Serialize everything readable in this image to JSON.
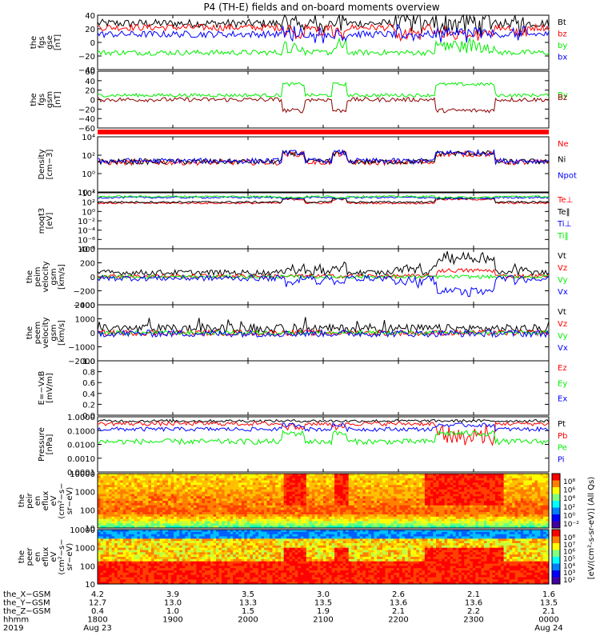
{
  "title": "P4 (TH-E) fields and on-board moments overview",
  "colors": {
    "black": "#000000",
    "red": "#ff0000",
    "green": "#00ee00",
    "blue": "#0000ff",
    "darkred": "#8b0000",
    "bar_red": "#ff0000"
  },
  "chart_data": [
    {
      "type": "line",
      "panel_id": "fgs_gse",
      "ylabel_lines": [
        "the",
        "fgs",
        "gse",
        "[nT]"
      ],
      "ylim": [
        -40,
        40
      ],
      "y_ticks": [
        "40",
        "20",
        "0",
        "−20",
        "−40"
      ],
      "series": [
        {
          "name": "Bt",
          "color": "black",
          "base": 28,
          "noise": 6,
          "pattern": "bt"
        },
        {
          "name": "bz",
          "color": "red",
          "base": 22,
          "noise": 5,
          "pattern": "bz"
        },
        {
          "name": "by",
          "color": "green",
          "base": -15,
          "noise": 4,
          "pattern": "by"
        },
        {
          "name": "bx",
          "color": "blue",
          "base": 12,
          "noise": 5,
          "pattern": "bx"
        }
      ]
    },
    {
      "type": "line",
      "panel_id": "fgs_gsm",
      "ylabel_lines": [
        "the",
        "fgs",
        "gsm",
        "[nT]"
      ],
      "ylim": [
        -70,
        60
      ],
      "y_ticks": [
        "60",
        "40",
        "20",
        "0",
        "−20",
        "−40",
        "−60"
      ],
      "series": [
        {
          "name": "By",
          "color": "green",
          "base": 5,
          "noise": 4,
          "pattern": "gsmby"
        },
        {
          "name": "Bz",
          "color": "darkred",
          "base": -5,
          "noise": 5,
          "pattern": "gsmbz"
        }
      ],
      "legend_overlap": true
    },
    {
      "type": "line",
      "panel_id": "density",
      "ylabel_lines": [
        "Density",
        "[cm−3]"
      ],
      "log": true,
      "ylim": [
        -4,
        4
      ],
      "y_ticks": [
        "10⁴",
        "10²",
        "10⁰",
        "10⁻²"
      ],
      "series": [
        {
          "name": "Ne",
          "color": "red",
          "base": 0.3,
          "noise": 0.4,
          "pattern": "dens"
        },
        {
          "name": "Ni",
          "color": "black",
          "base": 0.4,
          "noise": 0.4,
          "pattern": "dens"
        },
        {
          "name": "Npot",
          "color": "blue",
          "base": 0.5,
          "noise": 0.4,
          "pattern": "dens"
        }
      ]
    },
    {
      "type": "line",
      "panel_id": "temp",
      "ylabel_lines": [
        "moqt3",
        "[eV]"
      ],
      "log": true,
      "ylim": [
        -8,
        4
      ],
      "y_ticks": [
        "10⁴",
        "10²",
        "10⁰",
        "10⁻²",
        "10⁻⁴",
        "10⁻⁶",
        "10⁻⁸"
      ],
      "series": [
        {
          "name": "Te⊥",
          "color": "red",
          "base": 1.8,
          "noise": 0.2,
          "pattern": "temp"
        },
        {
          "name": "Te‖",
          "color": "black",
          "base": 2.0,
          "noise": 0.2,
          "pattern": "temp"
        },
        {
          "name": "Ti⊥",
          "color": "blue",
          "base": 3.0,
          "noise": 0.2,
          "pattern": "tempi"
        },
        {
          "name": "Ti‖",
          "color": "green",
          "base": 3.2,
          "noise": 0.2,
          "pattern": "tempi"
        }
      ]
    },
    {
      "type": "line",
      "panel_id": "peim_vel",
      "ylabel_lines": [
        "the",
        "peim",
        "velocity",
        "gsm",
        "[km/s]"
      ],
      "ylim": [
        -400,
        400
      ],
      "y_ticks": [
        "400",
        "200",
        "0",
        "−200",
        "−400"
      ],
      "series": [
        {
          "name": "Vt",
          "color": "black",
          "base": 60,
          "noise": 40,
          "pattern": "vt"
        },
        {
          "name": "Vz",
          "color": "red",
          "base": 10,
          "noise": 30,
          "pattern": "vz"
        },
        {
          "name": "Vy",
          "color": "green",
          "base": 0,
          "noise": 25,
          "pattern": "vy"
        },
        {
          "name": "Vx",
          "color": "blue",
          "base": -20,
          "noise": 40,
          "pattern": "vx"
        }
      ]
    },
    {
      "type": "line",
      "panel_id": "peem_vel",
      "ylabel_lines": [
        "the",
        "peem",
        "velocity",
        "gsm",
        "[km/s]"
      ],
      "ylim": [
        -2000,
        2000
      ],
      "y_ticks": [
        "2000",
        "1000",
        "0",
        "−1000",
        "−2000"
      ],
      "series": [
        {
          "name": "Vt",
          "color": "black",
          "base": 300,
          "noise": 300,
          "pattern": "evt"
        },
        {
          "name": "Vz",
          "color": "red",
          "base": 0,
          "noise": 200,
          "pattern": "noise"
        },
        {
          "name": "Vy",
          "color": "green",
          "base": 0,
          "noise": 150,
          "pattern": "noise"
        },
        {
          "name": "Vx",
          "color": "blue",
          "base": -50,
          "noise": 250,
          "pattern": "noise"
        }
      ]
    },
    {
      "type": "line",
      "panel_id": "efield",
      "ylabel_lines": [
        "E=−VxB",
        "[mV/m]"
      ],
      "ylim": [
        0,
        1
      ],
      "y_ticks": [
        "1.0",
        "0.8",
        "0.6",
        "0.4",
        "0.2",
        "0.0"
      ],
      "series": [
        {
          "name": "Ez",
          "color": "red"
        },
        {
          "name": "Ey",
          "color": "green"
        },
        {
          "name": "Ex",
          "color": "blue"
        }
      ],
      "empty": true
    },
    {
      "type": "line",
      "panel_id": "pressure",
      "ylabel_lines": [
        "Pressure",
        "[nPa]"
      ],
      "log": true,
      "ylim": [
        -4,
        0
      ],
      "y_ticks": [
        "1.0000",
        "0.1000",
        "0.0100",
        "0.0010",
        "0.0001"
      ],
      "series": [
        {
          "name": "Pt",
          "color": "black",
          "base": -0.3,
          "noise": 0.1,
          "pattern": "pt"
        },
        {
          "name": "Pb",
          "color": "red",
          "base": -0.5,
          "noise": 0.15,
          "pattern": "pb"
        },
        {
          "name": "Pe",
          "color": "green",
          "base": -1.8,
          "noise": 0.2,
          "pattern": "pe"
        },
        {
          "name": "Pi",
          "color": "blue",
          "base": -0.9,
          "noise": 0.15,
          "pattern": "pi"
        }
      ]
    },
    {
      "type": "heatmap",
      "panel_id": "peir_eflux",
      "ylabel_lines": [
        "the",
        "peir",
        "en",
        "eflux",
        "eV",
        "(cm²−s−",
        "sr−eV)"
      ],
      "y_ticks": [
        "10000",
        "1000",
        "100",
        "10"
      ],
      "pattern": "ions"
    },
    {
      "type": "heatmap",
      "panel_id": "peer_eflux",
      "ylabel_lines": [
        "the",
        "peer",
        "en",
        "eflux",
        "eV",
        "(cm²−s−",
        "sr−eV)"
      ],
      "y_ticks": [
        "10000",
        "1000",
        "100",
        "10"
      ],
      "pattern": "electrons"
    }
  ],
  "colorbar": {
    "label": "[eV/(cm²-s-sr-eV)] (All Qs)",
    "top_ticks": [
      "10⁸",
      "10⁶",
      "10⁴",
      "10²",
      "10⁰",
      "10⁻²"
    ],
    "bottom_ticks": [
      "10⁸",
      "10⁷",
      "10⁶",
      "10⁵",
      "10⁴",
      "10³",
      "10²"
    ]
  },
  "xaxis": {
    "rows": [
      {
        "label": "the_X−GSM",
        "values": [
          "4.2",
          "3.9",
          "3.5",
          "3.0",
          "2.6",
          "2.1",
          "1.6"
        ]
      },
      {
        "label": "the_Y−GSM",
        "values": [
          "12.7",
          "13.0",
          "13.3",
          "13.5",
          "13.6",
          "13.6",
          "13.5"
        ]
      },
      {
        "label": "the_Z−GSM",
        "values": [
          "0.4",
          "1.0",
          "1.5",
          "1.9",
          "2.1",
          "2.2",
          "2.1"
        ]
      },
      {
        "label": "hhmm",
        "values": [
          "1800",
          "1900",
          "2000",
          "2100",
          "2200",
          "2300",
          "0000"
        ]
      },
      {
        "label": "2019",
        "values": [
          "Aug 23",
          "",
          "",
          "",
          "",
          "",
          "Aug 24"
        ]
      }
    ]
  }
}
